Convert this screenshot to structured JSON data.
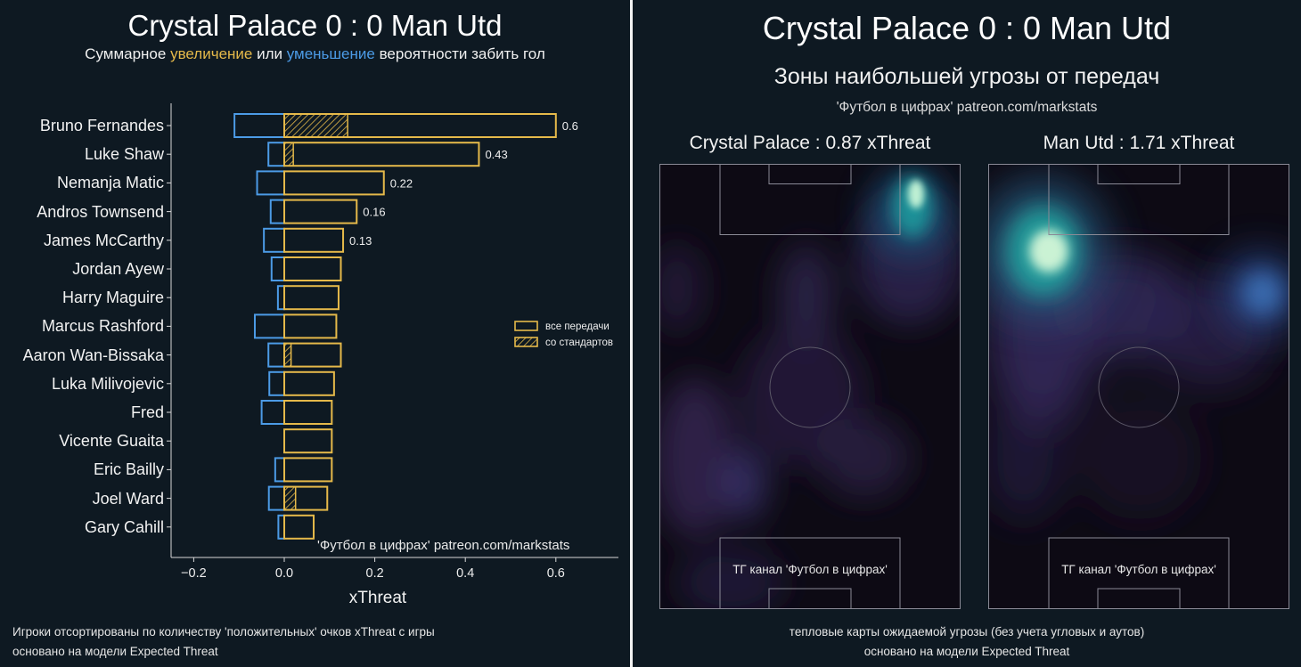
{
  "left": {
    "title": "Crystal Palace 0 : 0 Man Utd",
    "subtitle": {
      "part1": "Суммарное ",
      "highlight_increase": "увеличение",
      "part2": " или ",
      "highlight_decrease": "уменьшение",
      "part3": " вероятности забить гол"
    },
    "credit": "'Футбол в цифрах' patreon.com/markstats",
    "legend": {
      "all_passes": "все передачи",
      "set_pieces": "со стандартов"
    },
    "footnote_line1": "Игроки отсортированы по количеству 'положительных' очков xThreat с игры",
    "footnote_line2": "основано на модели Expected Threat"
  },
  "chart_data": {
    "type": "bar",
    "orientation": "horizontal",
    "title": "Crystal Palace 0 : 0 Man Utd",
    "xlabel": "xThreat",
    "xlim": [
      -0.25,
      0.735
    ],
    "xticks": [
      -0.2,
      0.0,
      0.2,
      0.4,
      0.6
    ],
    "xtick_labels": [
      "−0.2",
      "0.0",
      "0.2",
      "0.4",
      "0.6"
    ],
    "categories": [
      "Bruno Fernandes",
      "Luke Shaw",
      "Nemanja Matic",
      "Andros Townsend",
      "James McCarthy",
      "Jordan Ayew",
      "Harry Maguire",
      "Marcus Rashford",
      "Aaron Wan-Bissaka",
      "Luka Milivojevic",
      "Fred",
      "Vicente Guaita",
      "Eric Bailly",
      "Joel Ward",
      "Gary Cahill"
    ],
    "series": [
      {
        "name": "все передачи",
        "values": [
          0.6,
          0.43,
          0.22,
          0.16,
          0.13,
          0.125,
          0.12,
          0.115,
          0.125,
          0.11,
          0.105,
          0.105,
          0.105,
          0.095,
          0.065
        ]
      },
      {
        "values": [
          -0.11,
          -0.035,
          -0.06,
          -0.03,
          -0.045,
          -0.028,
          -0.014,
          -0.065,
          -0.035,
          -0.033,
          -0.05,
          0.0,
          -0.02,
          -0.034,
          -0.013
        ]
      },
      {
        "name": "со стандартов",
        "values": [
          0.14,
          0.02,
          0,
          0,
          0,
          0,
          0,
          0,
          0.015,
          0,
          0,
          0,
          0,
          0.025,
          0
        ]
      }
    ],
    "data_labels": [
      "0.6",
      "0.43",
      "0.22",
      "0.16",
      "0.13"
    ],
    "legend_position": "right"
  },
  "right": {
    "title": "Crystal Palace 0 : 0 Man Utd",
    "subtitle": "Зоны наибольшей угрозы от передач",
    "credit": "'Футбол в цифрах' patreon.com/markstats",
    "heatmaps": [
      {
        "label": "Crystal Palace : 0.87 xThreat",
        "channel": "ТГ канал 'Футбол в цифрах'"
      },
      {
        "label": "Man Utd : 1.71 xThreat",
        "channel": "ТГ канал 'Футбол в цифрах'"
      }
    ],
    "footnote_line1": "тепловые карты ожидаемой угрозы (без учета угловых и аутов)",
    "footnote_line2": "основано на модели Expected Threat"
  },
  "colors": {
    "background": "#0e1922",
    "positive": "#e5b94a",
    "negative": "#4c9be6",
    "text": "#ffffff"
  }
}
